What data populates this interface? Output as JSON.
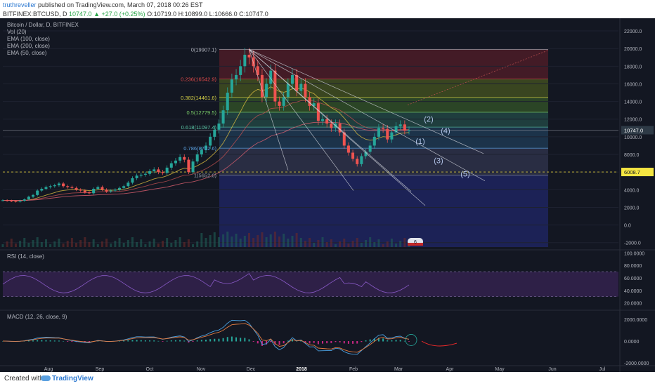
{
  "header": {
    "author": "truthreveller",
    "published": " published on TradingView.com, March 07, 2018 00:26 EST",
    "symbol": "BITFINEX:BTCUSD, D",
    "last": "10747.0",
    "change": "▲ +27.0 (+0.25%)",
    "ohlc": "O:10719.0 H:10899.0 L:10666.0 C:10747.0"
  },
  "legend": {
    "title": "Bitcoin / Dollar, D, BITFINEX",
    "items": [
      "Vol (20)",
      "EMA (100, close)",
      "EMA (200, close)",
      "EMA (50, close)"
    ]
  },
  "rsi_label": "RSI (14, close)",
  "macd_label": "MACD (12, 26, close, 9)",
  "footer": {
    "created": "Created with",
    "brand": "TradingView"
  },
  "colors": {
    "bg": "#131722",
    "up": "#26a69a",
    "down": "#ef5350",
    "price_label": "#ffffff",
    "support_label": "#f5e642"
  },
  "chart_data": {
    "type": "candlestick",
    "symbol": "BTCUSD",
    "exchange": "BITFINEX",
    "interval": "D",
    "price_axis": {
      "ticks": [
        -2000,
        0,
        2000,
        4000,
        6000,
        8000,
        10000,
        12000,
        14000,
        16000,
        18000,
        20000,
        22000
      ],
      "labels": [
        "-2000.0",
        "0.0",
        "2000.0",
        "4000.0",
        "6000.0",
        "8000.0",
        "10000.0",
        "12000.0",
        "14000.0",
        "16000.0",
        "18000.0",
        "20000.0",
        "22000.0"
      ]
    },
    "x_axis": {
      "labels": [
        "Aug",
        "Sep",
        "Oct",
        "Nov",
        "Dec",
        "2018",
        "Feb",
        "Mar",
        "Apr",
        "May",
        "Jun",
        "Jul"
      ]
    },
    "last_price": 10747.0,
    "last_price_label": "10747.0",
    "support_price": 6008.7,
    "support_label": "6008.7",
    "price_path": [
      2800,
      2750,
      2700,
      2650,
      2750,
      2900,
      3200,
      3400,
      3900,
      4100,
      4300,
      4400,
      4500,
      4700,
      4400,
      4300,
      4200,
      4000,
      3900,
      3700,
      3600,
      4100,
      4300,
      4000,
      3800,
      3900,
      4000,
      4200,
      4400,
      4800,
      5300,
      5600,
      5700,
      5800,
      6100,
      6300,
      6000,
      5900,
      6500,
      7000,
      7300,
      7700,
      7400,
      6000,
      7200,
      8000,
      8500,
      9000,
      10000,
      10800,
      11500,
      13000,
      15000,
      16500,
      17000,
      18000,
      19300,
      19000,
      18000,
      17000,
      14500,
      16000,
      17500,
      14000,
      13500,
      14500,
      16000,
      17000,
      15200,
      16000,
      14500,
      13500,
      13800,
      11800,
      12000,
      11500,
      11000,
      11500,
      10500,
      9000,
      8200,
      7500,
      6900,
      7800,
      8300,
      9000,
      10000,
      11000,
      10900,
      9700,
      10500,
      11200,
      11400,
      10700,
      10747
    ],
    "fibonacci": [
      {
        "level": "0",
        "price": 19907.1,
        "label": "0(19907.1)"
      },
      {
        "level": "0.236",
        "price": 16542.9,
        "label": "0.236(16542.9)"
      },
      {
        "level": "0.382",
        "price": 14461.6,
        "label": "0.382(14461.6)"
      },
      {
        "level": "0.5",
        "price": 12779.5,
        "label": "0.5(12779.5)"
      },
      {
        "level": "0.618",
        "price": 11097.4,
        "label": "0.618(11097.4)"
      },
      {
        "level": "0.786",
        "price": 8702.6,
        "label": "0.786(8702.6)"
      },
      {
        "level": "1",
        "price": 5652.0,
        "label": "1(5652.0)"
      }
    ],
    "wave_labels": [
      "(1)",
      "(2)",
      "(3)",
      "(4)",
      "(5)"
    ],
    "rsi_axis": [
      "100.0000",
      "80.0000",
      "60.0000",
      "40.0000",
      "20.0000"
    ],
    "rsi_bands": [
      70,
      30
    ],
    "macd_axis": [
      "2000.0000",
      "0.0000",
      "-2000.0000"
    ],
    "event_badge": "6"
  }
}
